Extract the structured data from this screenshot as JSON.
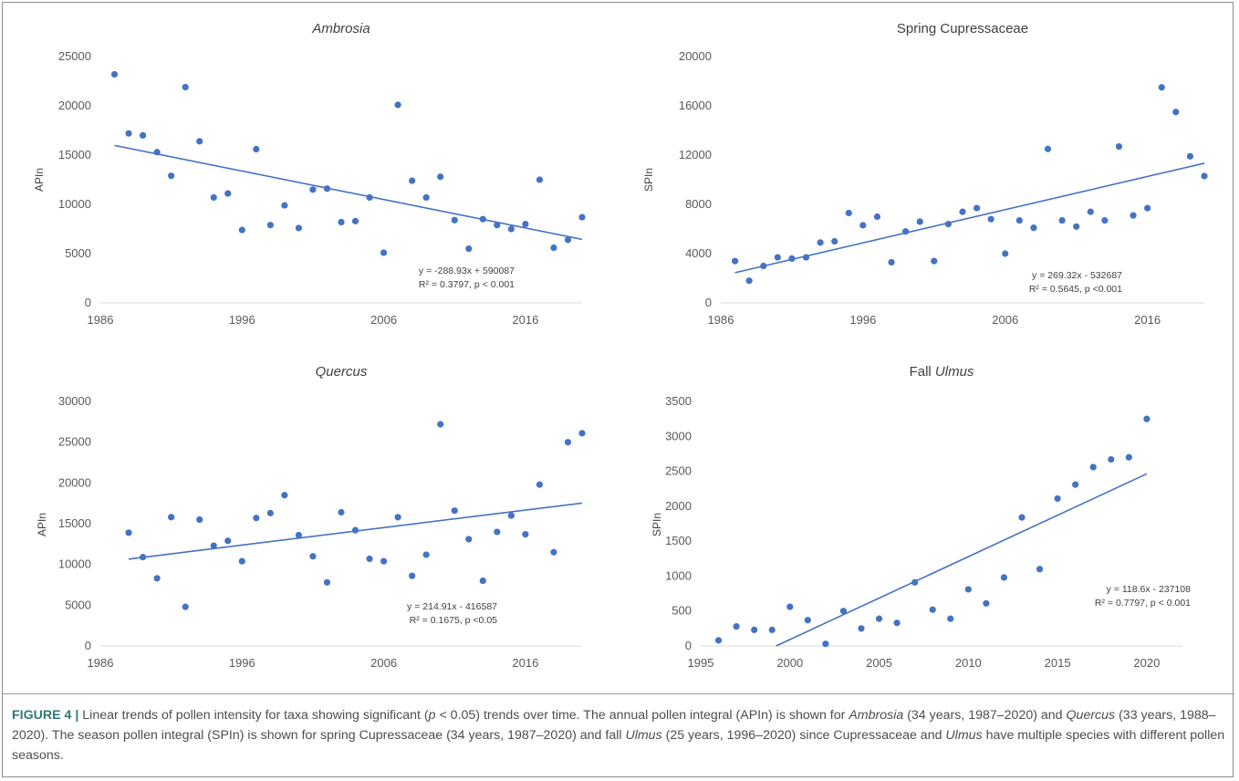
{
  "chart_data": [
    {
      "type": "scatter",
      "title": "Ambrosia",
      "title_italic": true,
      "ylabel": "APIn",
      "xlim": [
        1986,
        2020
      ],
      "ylim": [
        0,
        25000
      ],
      "xticks": [
        1986,
        1996,
        2006,
        2016
      ],
      "yticks": [
        0,
        5000,
        10000,
        15000,
        20000,
        25000
      ],
      "points": [
        [
          1987,
          23200
        ],
        [
          1988,
          17200
        ],
        [
          1989,
          17000
        ],
        [
          1990,
          15300
        ],
        [
          1991,
          12900
        ],
        [
          1992,
          21900
        ],
        [
          1993,
          16400
        ],
        [
          1994,
          10700
        ],
        [
          1995,
          11100
        ],
        [
          1996,
          7400
        ],
        [
          1997,
          15600
        ],
        [
          1998,
          7900
        ],
        [
          1999,
          9900
        ],
        [
          2000,
          7600
        ],
        [
          2001,
          11500
        ],
        [
          2002,
          11600
        ],
        [
          2003,
          8200
        ],
        [
          2004,
          8300
        ],
        [
          2005,
          10700
        ],
        [
          2006,
          5100
        ],
        [
          2007,
          20100
        ],
        [
          2008,
          12400
        ],
        [
          2009,
          10700
        ],
        [
          2010,
          12800
        ],
        [
          2011,
          8400
        ],
        [
          2012,
          5500
        ],
        [
          2013,
          8500
        ],
        [
          2014,
          7900
        ],
        [
          2015,
          7500
        ],
        [
          2016,
          8000
        ],
        [
          2017,
          12500
        ],
        [
          2018,
          5600
        ],
        [
          2019,
          6400
        ],
        [
          2020,
          8700
        ]
      ],
      "trendline": {
        "slope": -288.93,
        "intercept": 590087,
        "x_range": [
          1987,
          2020
        ]
      },
      "equation": "y = -288.93x + 590087",
      "stats": "R² = 0.3797, p < 0.001",
      "colors": {
        "points": "#4472c4",
        "line": "#4472c4"
      }
    },
    {
      "type": "scatter",
      "title": "Spring Cupressaceae",
      "title_italic": false,
      "ylabel": "SPIn",
      "xlim": [
        1986,
        2020
      ],
      "ylim": [
        0,
        20000
      ],
      "xticks": [
        1986,
        1996,
        2006,
        2016
      ],
      "yticks": [
        0,
        4000,
        8000,
        12000,
        16000,
        20000
      ],
      "points": [
        [
          1987,
          3400
        ],
        [
          1988,
          1800
        ],
        [
          1989,
          3000
        ],
        [
          1990,
          3700
        ],
        [
          1991,
          3600
        ],
        [
          1992,
          3700
        ],
        [
          1993,
          4900
        ],
        [
          1994,
          5000
        ],
        [
          1995,
          7300
        ],
        [
          1996,
          6300
        ],
        [
          1997,
          7000
        ],
        [
          1998,
          3300
        ],
        [
          1999,
          5800
        ],
        [
          2000,
          6600
        ],
        [
          2001,
          3400
        ],
        [
          2002,
          6400
        ],
        [
          2003,
          7400
        ],
        [
          2004,
          7700
        ],
        [
          2005,
          6800
        ],
        [
          2006,
          4000
        ],
        [
          2007,
          6700
        ],
        [
          2008,
          6100
        ],
        [
          2009,
          12500
        ],
        [
          2010,
          6700
        ],
        [
          2011,
          6200
        ],
        [
          2012,
          7400
        ],
        [
          2013,
          6700
        ],
        [
          2014,
          12700
        ],
        [
          2015,
          7100
        ],
        [
          2016,
          7700
        ],
        [
          2017,
          17500
        ],
        [
          2018,
          15500
        ],
        [
          2019,
          11900
        ],
        [
          2020,
          10300
        ]
      ],
      "trendline": {
        "slope": 269.32,
        "intercept": -532687,
        "x_range": [
          1987,
          2020
        ]
      },
      "equation": "y = 269.32x - 532687",
      "stats": "R² = 0.5645,  p <0.001",
      "colors": {
        "points": "#4472c4",
        "line": "#4472c4"
      }
    },
    {
      "type": "scatter",
      "title": "Quercus",
      "title_italic": true,
      "ylabel": "APIn",
      "xlim": [
        1986,
        2020
      ],
      "ylim": [
        0,
        30000
      ],
      "xticks": [
        1986,
        1996,
        2006,
        2016
      ],
      "yticks": [
        0,
        5000,
        10000,
        15000,
        20000,
        25000,
        30000
      ],
      "points": [
        [
          1988,
          13900
        ],
        [
          1989,
          10900
        ],
        [
          1990,
          8300
        ],
        [
          1991,
          15800
        ],
        [
          1992,
          4800
        ],
        [
          1993,
          15500
        ],
        [
          1994,
          12300
        ],
        [
          1995,
          12900
        ],
        [
          1996,
          10400
        ],
        [
          1997,
          15700
        ],
        [
          1998,
          16300
        ],
        [
          1999,
          18500
        ],
        [
          2000,
          13600
        ],
        [
          2001,
          11000
        ],
        [
          2002,
          7800
        ],
        [
          2003,
          16400
        ],
        [
          2004,
          14200
        ],
        [
          2005,
          10700
        ],
        [
          2006,
          10400
        ],
        [
          2007,
          15800
        ],
        [
          2008,
          8600
        ],
        [
          2009,
          11200
        ],
        [
          2010,
          27200
        ],
        [
          2011,
          16600
        ],
        [
          2012,
          13100
        ],
        [
          2013,
          8000
        ],
        [
          2014,
          14000
        ],
        [
          2015,
          16000
        ],
        [
          2016,
          13700
        ],
        [
          2017,
          19800
        ],
        [
          2018,
          11500
        ],
        [
          2019,
          25000
        ],
        [
          2020,
          26100
        ]
      ],
      "trendline": {
        "slope": 214.91,
        "intercept": -416587,
        "x_range": [
          1988,
          2020
        ]
      },
      "equation": "y = 214.91x - 416587",
      "stats": "R² = 0.1675, p <0.05",
      "colors": {
        "points": "#4472c4",
        "line": "#4472c4"
      }
    },
    {
      "type": "scatter",
      "title_prefix": "Fall ",
      "title": "Ulmus",
      "title_italic": true,
      "ylabel": "SPIn",
      "xlim": [
        1995,
        2022
      ],
      "ylim": [
        0,
        3500
      ],
      "xticks": [
        1995,
        2000,
        2005,
        2010,
        2015,
        2020
      ],
      "yticks": [
        0,
        500,
        1000,
        1500,
        2000,
        2500,
        3000,
        3500
      ],
      "points": [
        [
          1996,
          80
        ],
        [
          1997,
          280
        ],
        [
          1998,
          230
        ],
        [
          1999,
          230
        ],
        [
          2000,
          560
        ],
        [
          2001,
          370
        ],
        [
          2002,
          30
        ],
        [
          2003,
          500
        ],
        [
          2004,
          250
        ],
        [
          2005,
          390
        ],
        [
          2006,
          330
        ],
        [
          2007,
          910
        ],
        [
          2008,
          520
        ],
        [
          2009,
          390
        ],
        [
          2010,
          810
        ],
        [
          2011,
          610
        ],
        [
          2012,
          980
        ],
        [
          2013,
          1840
        ],
        [
          2014,
          1100
        ],
        [
          2015,
          2110
        ],
        [
          2016,
          2310
        ],
        [
          2017,
          2560
        ],
        [
          2018,
          2670
        ],
        [
          2019,
          2700
        ],
        [
          2020,
          3250
        ]
      ],
      "trendline": {
        "slope": 118.6,
        "intercept": -237108,
        "x_range": [
          1996,
          2020
        ]
      },
      "equation": "y = 118.6x - 237108",
      "stats": "R² = 0.7797, p < 0.001",
      "colors": {
        "points": "#4472c4",
        "line": "#4472c4"
      }
    }
  ],
  "caption": {
    "label": "FIGURE 4 |",
    "parts": [
      {
        "t": " Linear trends of pollen intensity for taxa showing significant (",
        "i": false
      },
      {
        "t": "p",
        "i": true
      },
      {
        "t": " < 0.05) trends over time. The annual pollen integral (APIn) is shown for ",
        "i": false
      },
      {
        "t": "Ambrosia",
        "i": true
      },
      {
        "t": " (34 years, 1987–2020) and ",
        "i": false
      },
      {
        "t": "Quercus",
        "i": true
      },
      {
        "t": " (33 years, 1988–2020). The season pollen integral (SPIn) is shown for spring Cupressaceae (34 years, 1987–2020) and fall ",
        "i": false
      },
      {
        "t": "Ulmus",
        "i": true
      },
      {
        "t": " (25 years, 1996–2020) since Cupressaceae and ",
        "i": false
      },
      {
        "t": "Ulmus",
        "i": true
      },
      {
        "t": " have multiple species with different pollen seasons.",
        "i": false
      }
    ]
  },
  "colors": {
    "caption_label": "#2d7a7a",
    "frame": "#8c8c8c",
    "gridline": "#d9d9d9"
  }
}
